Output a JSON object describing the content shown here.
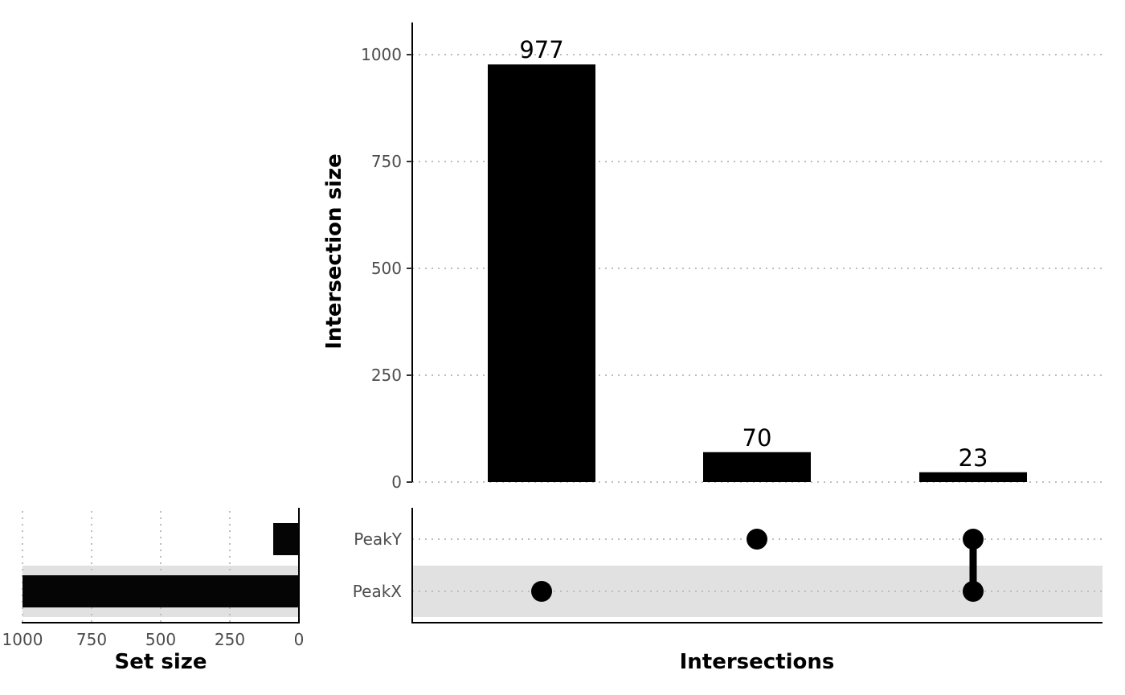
{
  "chart_data": {
    "type": "bar",
    "title": "",
    "intersections": {
      "ylabel": "Intersection size",
      "xlabel": "Intersections",
      "ylim": [
        0,
        1070
      ],
      "yticks": [
        0,
        250,
        500,
        750,
        1000
      ],
      "values": [
        977,
        70,
        23
      ],
      "labels": [
        "977",
        "70",
        "23"
      ],
      "members": [
        [
          "PeakX"
        ],
        [
          "PeakY"
        ],
        [
          "PeakX",
          "PeakY"
        ]
      ]
    },
    "sets": {
      "names": [
        "PeakY",
        "PeakX"
      ],
      "sizes": [
        93,
        1000
      ],
      "xlabel": "Set size",
      "xlim": [
        0,
        1000
      ],
      "xticks": [
        1000,
        750,
        500,
        250,
        0
      ],
      "shaded": [
        "PeakX"
      ]
    },
    "grid": true,
    "legend": "none",
    "colors": {
      "bar": "#000000",
      "grid": "#bdbdbd",
      "shade": "#e1e1e1",
      "tick_text": "#4d4d4d"
    }
  }
}
